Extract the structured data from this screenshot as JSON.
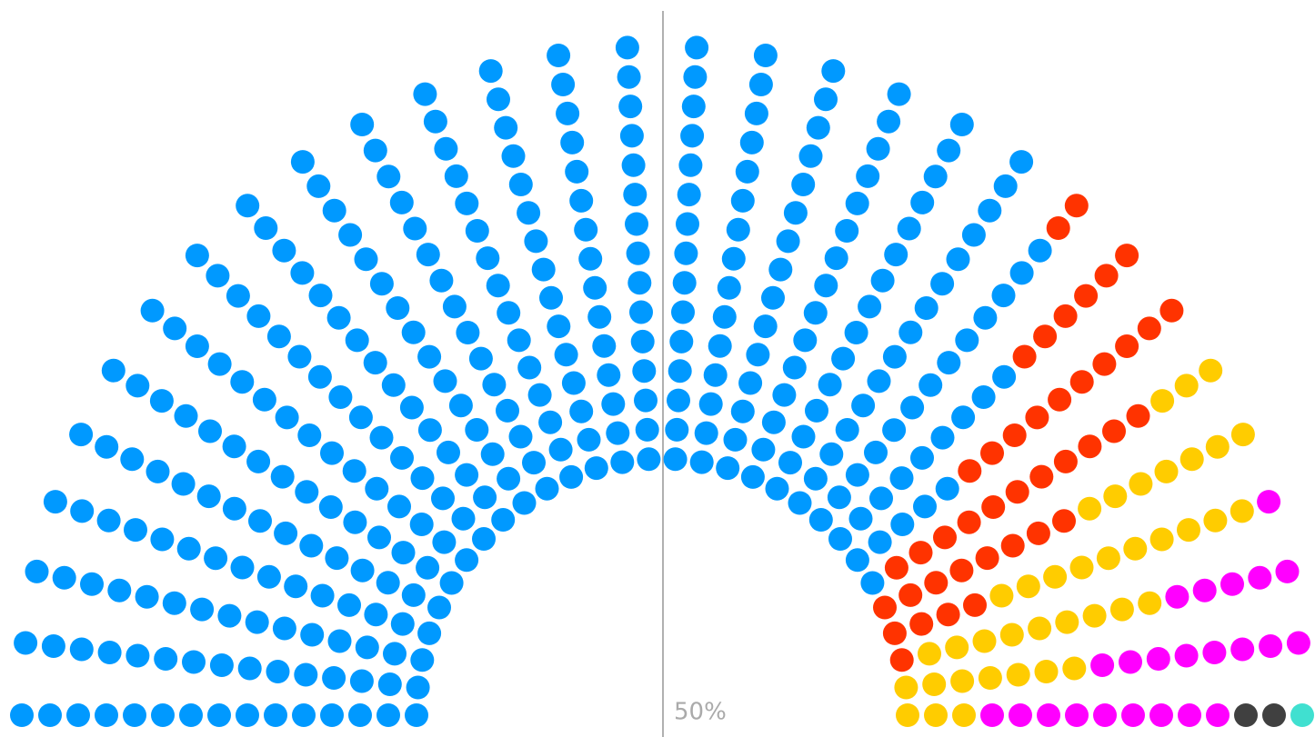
{
  "chart_data": {
    "type": "parliament",
    "values": [
      343,
      42,
      39,
      23,
      1,
      1,
      1
    ],
    "colors": [
      "#0099ff",
      "#ff3300",
      "#ffcc00",
      "#ff00ff",
      "#404040",
      "#404040",
      "#40e0d0"
    ],
    "annotation": "50%"
  }
}
